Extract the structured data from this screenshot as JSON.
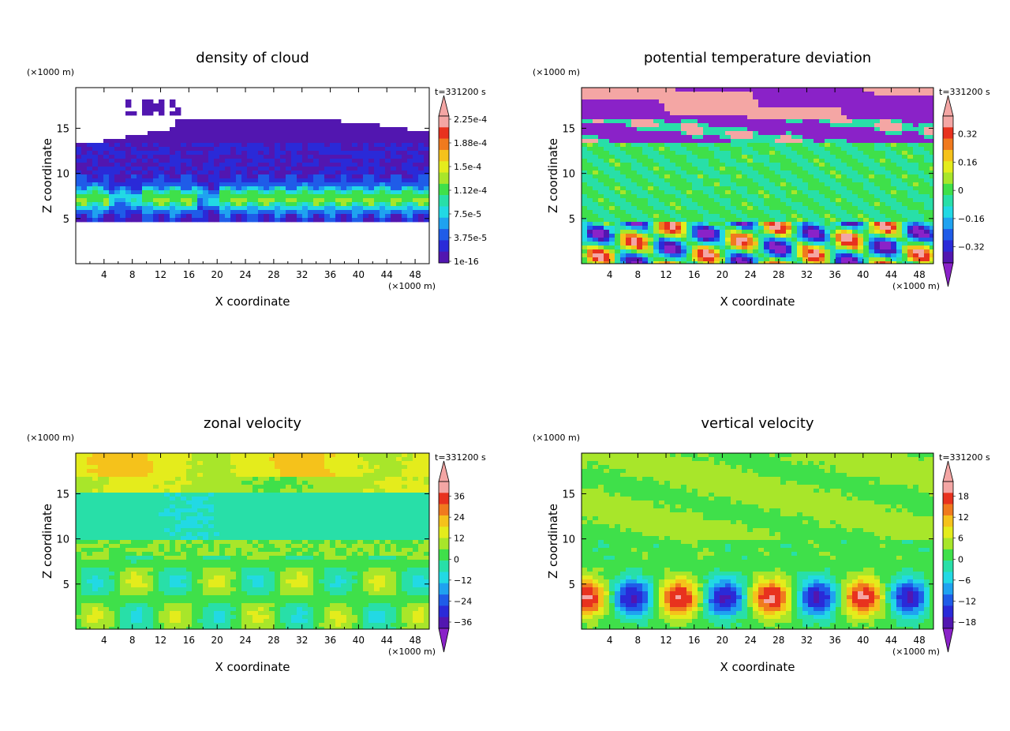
{
  "figure": {
    "time_label": "t=331200 s",
    "unit_label": "(×1000 m)"
  },
  "chart_data": [
    {
      "type": "heatmap",
      "title": "density of cloud",
      "xlabel": "X coordinate",
      "ylabel": "Z coordinate",
      "xlim": [
        0,
        50
      ],
      "ylim": [
        0,
        19.5
      ],
      "x_ticks": [
        "4",
        "8",
        "12",
        "16",
        "20",
        "24",
        "28",
        "32",
        "36",
        "40",
        "44",
        "48"
      ],
      "y_ticks": [
        "5",
        "10",
        "15"
      ],
      "colorbar": {
        "levels": [
          "2.25e-4",
          "1.88e-4",
          "1.5e-4",
          "1.12e-4",
          "7.5e-5",
          "3.75e-5",
          "1e-16"
        ],
        "colors": [
          "#f4a6a4",
          "#e8321e",
          "#f07a1e",
          "#f5c21b",
          "#e4ec1c",
          "#a8e62a",
          "#3fe04a",
          "#28dfa8",
          "#22d9e4",
          "#1fa2f0",
          "#1f5ce8",
          "#2a2ad8",
          "#5216b0"
        ]
      },
      "field": "cloud"
    },
    {
      "type": "heatmap",
      "title": "potential temperature deviation",
      "xlabel": "X coordinate",
      "ylabel": "Z coordinate",
      "xlim": [
        0,
        50
      ],
      "ylim": [
        0,
        19.5
      ],
      "x_ticks": [
        "4",
        "8",
        "12",
        "16",
        "20",
        "24",
        "28",
        "32",
        "36",
        "40",
        "44",
        "48"
      ],
      "y_ticks": [
        "5",
        "10",
        "15"
      ],
      "colorbar": {
        "levels": [
          "0.32",
          "0.16",
          "0",
          "−0.16",
          "−0.32"
        ],
        "colors": [
          "#f4a6a4",
          "#e8321e",
          "#f07a1e",
          "#f5c21b",
          "#e4ec1c",
          "#a8e62a",
          "#3fe04a",
          "#28dfa8",
          "#22d9e4",
          "#1fa2f0",
          "#1f5ce8",
          "#2a2ad8",
          "#5216b0"
        ],
        "under_color": "#8a22c8"
      },
      "field": "theta"
    },
    {
      "type": "heatmap",
      "title": "zonal velocity",
      "xlabel": "X coordinate",
      "ylabel": "Z coordinate",
      "xlim": [
        0,
        50
      ],
      "ylim": [
        0,
        19.5
      ],
      "x_ticks": [
        "4",
        "8",
        "12",
        "16",
        "20",
        "24",
        "28",
        "32",
        "36",
        "40",
        "44",
        "48"
      ],
      "y_ticks": [
        "5",
        "10",
        "15"
      ],
      "colorbar": {
        "levels": [
          "36",
          "24",
          "12",
          "0",
          "−12",
          "−24",
          "−36"
        ],
        "colors": [
          "#f4a6a4",
          "#e8321e",
          "#f07a1e",
          "#f5c21b",
          "#e4ec1c",
          "#a8e62a",
          "#3fe04a",
          "#28dfa8",
          "#22d9e4",
          "#1fa2f0",
          "#1f5ce8",
          "#2a2ad8",
          "#5216b0"
        ],
        "under_color": "#8a22c8"
      },
      "field": "u"
    },
    {
      "type": "heatmap",
      "title": "vertical velocity",
      "xlabel": "X coordinate",
      "ylabel": "Z coordinate",
      "xlim": [
        0,
        50
      ],
      "ylim": [
        0,
        19.5
      ],
      "x_ticks": [
        "4",
        "8",
        "12",
        "16",
        "20",
        "24",
        "28",
        "32",
        "36",
        "40",
        "44",
        "48"
      ],
      "y_ticks": [
        "5",
        "10",
        "15"
      ],
      "colorbar": {
        "levels": [
          "18",
          "12",
          "6",
          "0",
          "−6",
          "−12",
          "−18"
        ],
        "colors": [
          "#f4a6a4",
          "#e8321e",
          "#f07a1e",
          "#f5c21b",
          "#e4ec1c",
          "#a8e62a",
          "#3fe04a",
          "#28dfa8",
          "#22d9e4",
          "#1fa2f0",
          "#1f5ce8",
          "#2a2ad8",
          "#5216b0"
        ],
        "under_color": "#8a22c8"
      },
      "field": "w"
    }
  ]
}
